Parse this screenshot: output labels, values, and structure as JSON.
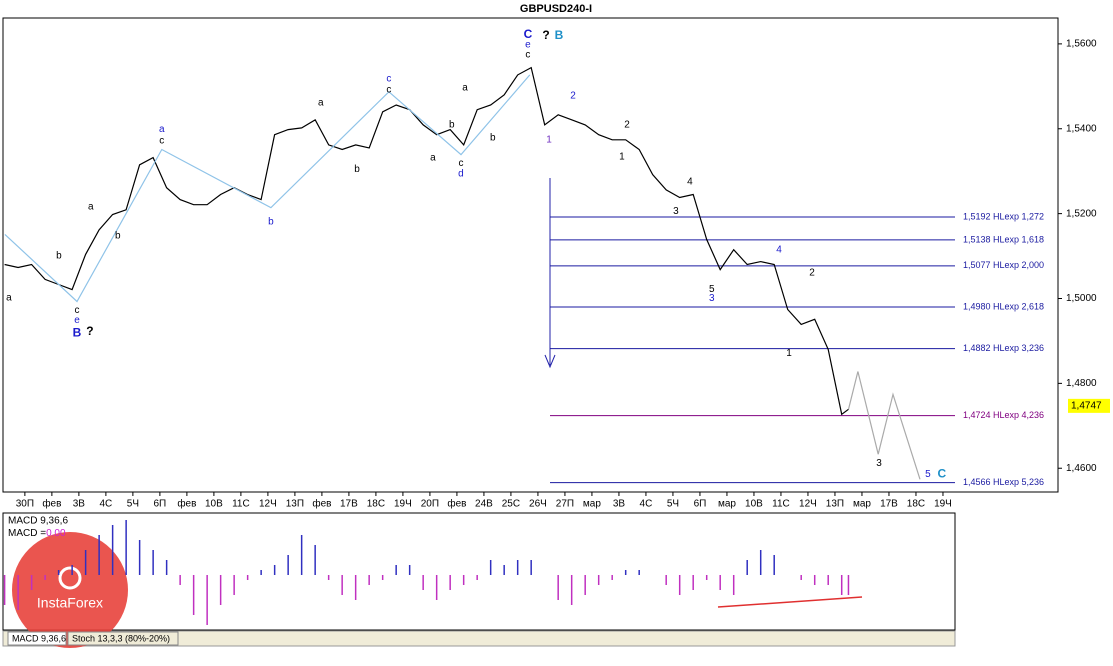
{
  "chart_data": [
    {
      "type": "line",
      "title": "GBPUSD240-I",
      "xlim": [
        -0.81,
        38.26
      ],
      "ylim": [
        1.4544,
        1.5661
      ],
      "xticks": [
        {
          "value": 0,
          "label": "30П"
        },
        {
          "value": 1,
          "label": "фев"
        },
        {
          "value": 2,
          "label": "3В"
        },
        {
          "value": 3,
          "label": "4С"
        },
        {
          "value": 4,
          "label": "5Ч"
        },
        {
          "value": 5,
          "label": "6П"
        },
        {
          "value": 6,
          "label": "фев"
        },
        {
          "value": 7,
          "label": "10В"
        },
        {
          "value": 8,
          "label": "11С"
        },
        {
          "value": 9,
          "label": "12Ч"
        },
        {
          "value": 10,
          "label": "13П"
        },
        {
          "value": 11,
          "label": "фев"
        },
        {
          "value": 12,
          "label": "17В"
        },
        {
          "value": 13,
          "label": "18С"
        },
        {
          "value": 14,
          "label": "19Ч"
        },
        {
          "value": 15,
          "label": "20П"
        },
        {
          "value": 16,
          "label": "фев"
        },
        {
          "value": 17,
          "label": "24В"
        },
        {
          "value": 18,
          "label": "25С"
        },
        {
          "value": 19,
          "label": "26Ч"
        },
        {
          "value": 20,
          "label": "27П"
        },
        {
          "value": 21,
          "label": "мар"
        },
        {
          "value": 22,
          "label": "3В"
        },
        {
          "value": 23,
          "label": "4С"
        },
        {
          "value": 24,
          "label": "5Ч"
        },
        {
          "value": 25,
          "label": "6П"
        },
        {
          "value": 26,
          "label": "мар"
        },
        {
          "value": 27,
          "label": "10В"
        },
        {
          "value": 28,
          "label": "11С"
        },
        {
          "value": 29,
          "label": "12Ч"
        },
        {
          "value": 30,
          "label": "13П"
        },
        {
          "value": 31,
          "label": "мар"
        },
        {
          "value": 32,
          "label": "17В"
        },
        {
          "value": 33,
          "label": "18С"
        },
        {
          "value": 34,
          "label": "19Ч"
        }
      ],
      "yticks": [
        {
          "value": 1.46,
          "label": "1,4600"
        },
        {
          "value": 1.48,
          "label": "1,4800"
        },
        {
          "value": 1.5,
          "label": "1,5000"
        },
        {
          "value": 1.52,
          "label": "1,5200"
        },
        {
          "value": 1.54,
          "label": "1,5400"
        },
        {
          "value": 1.56,
          "label": "1,5600"
        }
      ],
      "series": [
        {
          "color": "#000000",
          "x": [
            -0.75,
            -0.25,
            0.25,
            0.75,
            1.25,
            1.75,
            2.25,
            2.75,
            3.25,
            3.75,
            4.25,
            4.75,
            5.25,
            5.75,
            6.25,
            6.75,
            7.25,
            7.75,
            8.25,
            8.75,
            9.25,
            9.75,
            10.25,
            10.75,
            11.25,
            11.75,
            12.25,
            12.75,
            13.25,
            13.75,
            14.25,
            14.75,
            15.25,
            15.75,
            16.25,
            16.75,
            17.25,
            17.75,
            18.25,
            18.75,
            19.25,
            19.75,
            20.25,
            20.75,
            21.25,
            21.75,
            22.25,
            22.75,
            23.25,
            23.75,
            24.25,
            24.75,
            25.25,
            25.75,
            26.25,
            26.75,
            27.25,
            27.75,
            28.25,
            28.75,
            29.25,
            29.75,
            30.25,
            30.5
          ],
          "values": [
            1.508,
            1.5073,
            1.508,
            1.5045,
            1.5033,
            1.5021,
            1.5104,
            1.5162,
            1.5198,
            1.5209,
            1.5315,
            1.5332,
            1.5261,
            1.5233,
            1.5221,
            1.5221,
            1.5245,
            1.5261,
            1.5245,
            1.5233,
            1.5386,
            1.5398,
            1.5402,
            1.5421,
            1.5362,
            1.5351,
            1.5362,
            1.5355,
            1.544,
            1.5456,
            1.5445,
            1.5409,
            1.5386,
            1.5398,
            1.5362,
            1.5445,
            1.5456,
            1.548,
            1.5527,
            1.5544,
            1.5409,
            1.5433,
            1.5421,
            1.5409,
            1.5386,
            1.5374,
            1.5374,
            1.5351,
            1.5292,
            1.5256,
            1.5238,
            1.5245,
            1.5139,
            1.5068,
            1.5115,
            1.508,
            1.5087,
            1.508,
            1.4974,
            1.4939,
            1.4951,
            1.488,
            1.4727,
            1.4739
          ]
        },
        {
          "color": "#aaaaaa",
          "x": [
            30.5,
            30.85,
            31.6,
            32.15,
            33.15
          ],
          "values": [
            1.4739,
            1.4828,
            1.4633,
            1.4774,
            1.4574
          ]
        },
        {
          "color": "#8fc3e8",
          "x": [
            -0.74,
            1.93,
            5.07,
            9.11,
            13.48,
            16.15,
            18.7
          ],
          "values": [
            1.5151,
            1.4993,
            1.5351,
            1.5214,
            1.5487,
            1.5339,
            1.5527
          ]
        }
      ],
      "levels": [
        {
          "value": 1.5192,
          "label": "1,5192 HLexp 1,272",
          "color": "#1a1aa0"
        },
        {
          "value": 1.5138,
          "label": "1,5138 HLexp 1,618",
          "color": "#1a1aa0"
        },
        {
          "value": 1.5077,
          "label": "1,5077 HLexp 2,000",
          "color": "#1a1aa0"
        },
        {
          "value": 1.498,
          "label": "1,4980 HLexp 2,618",
          "color": "#1a1aa0"
        },
        {
          "value": 1.4882,
          "label": "1,4882 HLexp 3,236",
          "color": "#1a1aa0"
        },
        {
          "value": 1.4724,
          "label": "1,4724 HLexp 4,236",
          "color": "#800080"
        },
        {
          "value": 1.4566,
          "label": "1,4566 HLexp 5,236",
          "color": "#1a1aa0"
        }
      ],
      "last_price": {
        "value": 1.4747,
        "label": "1,4747"
      },
      "annotations": [
        {
          "text": "a",
          "x": -0.59,
          "y": 1.5002,
          "color": "#000000"
        },
        {
          "text": "b",
          "x": 1.26,
          "y": 1.5101,
          "color": "#000000"
        },
        {
          "text": "c",
          "x": 1.93,
          "y": 1.4972,
          "color": "#000000"
        },
        {
          "text": "e",
          "x": 1.93,
          "y": 1.4948,
          "color": "#1a1acc"
        },
        {
          "text": "B",
          "x": 1.93,
          "y": 1.4918,
          "color": "#1a1acc"
        },
        {
          "text": "?",
          "x": 2.41,
          "y": 1.4922,
          "color": "#000000"
        },
        {
          "text": "a",
          "x": 2.44,
          "y": 1.5216,
          "color": "#000000"
        },
        {
          "text": "b",
          "x": 3.44,
          "y": 1.5148,
          "color": "#000000"
        },
        {
          "text": "a",
          "x": 5.07,
          "y": 1.5398,
          "color": "#1a1acc"
        },
        {
          "text": "c",
          "x": 5.07,
          "y": 1.5372,
          "color": "#000000"
        },
        {
          "text": "b",
          "x": 9.11,
          "y": 1.5181,
          "color": "#1a1acc"
        },
        {
          "text": "c",
          "x": 13.48,
          "y": 1.5518,
          "color": "#1a1acc"
        },
        {
          "text": "c",
          "x": 13.48,
          "y": 1.5492,
          "color": "#000000"
        },
        {
          "text": "a",
          "x": 10.96,
          "y": 1.5461,
          "color": "#000000"
        },
        {
          "text": "b",
          "x": 12.3,
          "y": 1.5304,
          "color": "#000000"
        },
        {
          "text": "a",
          "x": 16.3,
          "y": 1.5496,
          "color": "#000000"
        },
        {
          "text": "b",
          "x": 15.81,
          "y": 1.5409,
          "color": "#000000"
        },
        {
          "text": "a",
          "x": 15.11,
          "y": 1.5332,
          "color": "#000000"
        },
        {
          "text": "c",
          "x": 16.15,
          "y": 1.5318,
          "color": "#000000"
        },
        {
          "text": "d",
          "x": 16.15,
          "y": 1.5294,
          "color": "#1a1acc"
        },
        {
          "text": "b",
          "x": 17.33,
          "y": 1.5379,
          "color": "#000000"
        },
        {
          "text": "C",
          "x": 18.63,
          "y": 1.5621,
          "color": "#1a1acc"
        },
        {
          "text": "e",
          "x": 18.63,
          "y": 1.5598,
          "color": "#1a1acc"
        },
        {
          "text": "c",
          "x": 18.63,
          "y": 1.5574,
          "color": "#000000"
        },
        {
          "text": "?",
          "x": 19.3,
          "y": 1.5619,
          "color": "#000000"
        },
        {
          "text": "B",
          "x": 19.78,
          "y": 1.5619,
          "color": "#1e90c8"
        },
        {
          "text": "1",
          "x": 19.41,
          "y": 1.5374,
          "color": "#7030c0"
        },
        {
          "text": "2",
          "x": 20.3,
          "y": 1.5478,
          "color": "#1a1acc"
        },
        {
          "text": "2",
          "x": 22.3,
          "y": 1.5409,
          "color": "#000000"
        },
        {
          "text": "1",
          "x": 22.11,
          "y": 1.5334,
          "color": "#000000"
        },
        {
          "text": "4",
          "x": 24.63,
          "y": 1.5275,
          "color": "#000000"
        },
        {
          "text": "3",
          "x": 24.11,
          "y": 1.5205,
          "color": "#000000"
        },
        {
          "text": "5",
          "x": 25.44,
          "y": 1.5021,
          "color": "#000000"
        },
        {
          "text": "3",
          "x": 25.44,
          "y": 1.5,
          "color": "#1a1acc"
        },
        {
          "text": "4",
          "x": 27.93,
          "y": 1.5115,
          "color": "#1a1acc"
        },
        {
          "text": "2",
          "x": 29.15,
          "y": 1.5061,
          "color": "#000000"
        },
        {
          "text": "1",
          "x": 28.3,
          "y": 1.4871,
          "color": "#000000"
        },
        {
          "text": "3",
          "x": 31.63,
          "y": 1.4612,
          "color": "#000000"
        },
        {
          "text": "5",
          "x": 33.44,
          "y": 1.4586,
          "color": "#1a1acc"
        },
        {
          "text": "C",
          "x": 33.96,
          "y": 1.4586,
          "color": "#1e90c8"
        }
      ]
    },
    {
      "type": "bar",
      "title": "MACD 9,36,6",
      "value_name": "MACD =",
      "value_label": "0.00",
      "color": "#c030c0",
      "color_up": "#3030c0",
      "xlim": [
        -0.81,
        38.26
      ],
      "ylim": [
        -0.0055,
        0.0062
      ],
      "x": [
        -0.75,
        -0.25,
        0.25,
        0.75,
        1.25,
        1.75,
        2.25,
        2.75,
        3.25,
        3.75,
        4.25,
        4.75,
        5.25,
        5.75,
        6.25,
        6.75,
        7.25,
        7.75,
        8.25,
        8.75,
        9.25,
        9.75,
        10.25,
        10.75,
        11.25,
        11.75,
        12.25,
        12.75,
        13.25,
        13.75,
        14.25,
        14.75,
        15.25,
        15.75,
        16.25,
        16.75,
        17.25,
        17.75,
        18.25,
        18.75,
        19.25,
        19.75,
        20.25,
        20.75,
        21.25,
        21.75,
        22.25,
        22.75,
        23.25,
        23.75,
        24.25,
        24.75,
        25.25,
        25.75,
        26.25,
        26.75,
        27.25,
        27.75,
        28.25,
        28.75,
        29.25,
        29.75,
        30.25,
        30.5
      ],
      "values": [
        -0.003,
        -0.0035,
        -0.0015,
        -0.0005,
        0.0005,
        0.001,
        0.0025,
        0.004,
        0.005,
        0.0055,
        0.0035,
        0.0025,
        0.0015,
        -0.001,
        -0.004,
        -0.005,
        -0.003,
        -0.002,
        -0.0005,
        0.0005,
        0.001,
        0.002,
        0.004,
        0.003,
        -0.0005,
        -0.002,
        -0.0025,
        -0.001,
        -0.0005,
        0.001,
        0.001,
        -0.0015,
        -0.0025,
        -0.0015,
        -0.001,
        -0.0005,
        0.0015,
        0.001,
        0.0015,
        0.0015,
        0.0,
        -0.0025,
        -0.003,
        -0.002,
        -0.001,
        -0.0005,
        0.0005,
        0.0005,
        0.0,
        -0.001,
        -0.002,
        -0.0015,
        -0.0005,
        -0.0015,
        -0.002,
        0.0015,
        0.0025,
        0.002,
        0.0,
        -0.0005,
        -0.001,
        -0.001,
        -0.002,
        -0.002
      ],
      "tabs": [
        "MACD 9,36,6",
        "Stoch 13,3,3 (80%-20%)"
      ],
      "logo": "InstaForex"
    }
  ]
}
